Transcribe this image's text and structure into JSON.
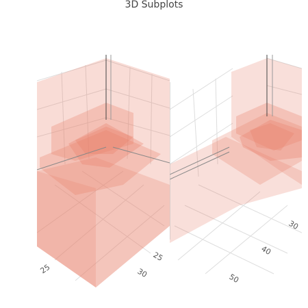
{
  "title": "3D Subplots",
  "colors": {
    "volume": "#e8806a",
    "gridline": "#dddddd",
    "axisline": "#444444"
  },
  "chart_data": [
    {
      "type": "volume",
      "scene": "left",
      "surface_color": "#e8806a",
      "ticks": {
        "axis_a": [
          "25"
        ],
        "axis_b": [
          "25",
          "30"
        ]
      }
    },
    {
      "type": "volume",
      "scene": "right",
      "surface_color": "#e8806a",
      "ticks": {
        "axis_a": [
          "30",
          "40",
          "50"
        ]
      }
    }
  ]
}
